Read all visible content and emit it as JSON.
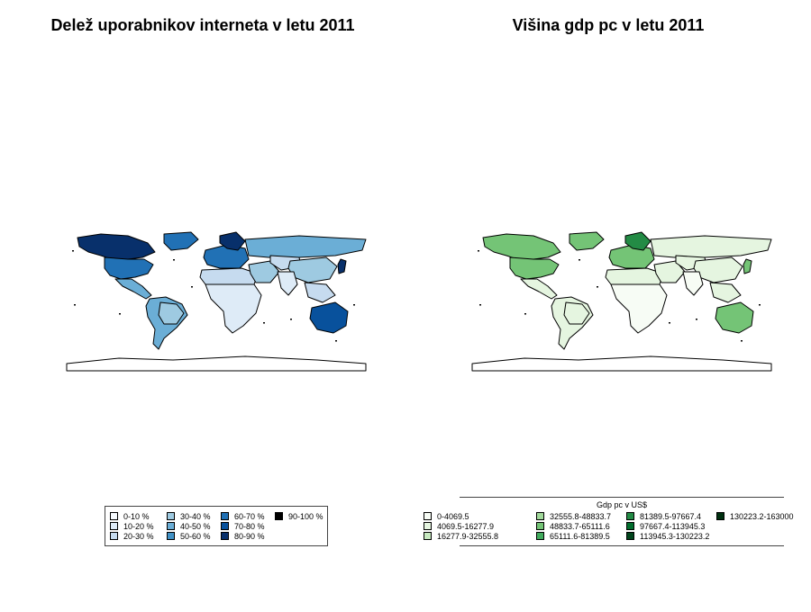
{
  "maps": [
    {
      "title": "Delež uporabnikov interneta v letu 2011",
      "legend": {
        "title": "",
        "items": [
          {
            "label": "0-10 %",
            "color": "#f7fbff"
          },
          {
            "label": "10-20 %",
            "color": "#deebf7"
          },
          {
            "label": "20-30 %",
            "color": "#c6dbef"
          },
          {
            "label": "30-40 %",
            "color": "#9ecae1"
          },
          {
            "label": "40-50 %",
            "color": "#6baed6"
          },
          {
            "label": "50-60 %",
            "color": "#4292c6"
          },
          {
            "label": "60-70 %",
            "color": "#2171b5"
          },
          {
            "label": "70-80 %",
            "color": "#08519c"
          },
          {
            "label": "80-90 %",
            "color": "#08306b"
          },
          {
            "label": "90-100 %",
            "color": "#000000"
          }
        ]
      },
      "regions": {
        "north_america": "#08306b",
        "greenland": "#2171b5",
        "usa": "#2171b5",
        "mexico_central": "#6baed6",
        "south_america": "#6baed6",
        "brazil": "#9ecae1",
        "africa": "#deebf7",
        "north_africa": "#c6dbef",
        "europe": "#2171b5",
        "scandinavia": "#08306b",
        "russia": "#6baed6",
        "middle_east": "#9ecae1",
        "central_asia": "#c6dbef",
        "china": "#9ecae1",
        "india": "#deebf7",
        "southeast_asia": "#c6dbef",
        "japan": "#08306b",
        "australia": "#08519c",
        "antarctica": "#ffffff"
      }
    },
    {
      "title": "Višina gdp pc v letu 2011",
      "legend": {
        "title": "Gdp pc v US$",
        "items": [
          {
            "label": "0-4069.5",
            "color": "#f7fcf5"
          },
          {
            "label": "4069.5-16277.9",
            "color": "#e5f5e0"
          },
          {
            "label": "16277.9-32555.8",
            "color": "#c7e9c0"
          },
          {
            "label": "32555.8-48833.7",
            "color": "#a1d99b"
          },
          {
            "label": "48833.7-65111.6",
            "color": "#74c476"
          },
          {
            "label": "65111.6-81389.5",
            "color": "#41ab5d"
          },
          {
            "label": "81389.5-97667.4",
            "color": "#238b45"
          },
          {
            "label": "97667.4-113945.3",
            "color": "#006d2c"
          },
          {
            "label": "113945.3-130223.2",
            "color": "#00441b"
          },
          {
            "label": "130223.2-163000",
            "color": "#003010"
          }
        ]
      },
      "regions": {
        "north_america": "#74c476",
        "greenland": "#74c476",
        "usa": "#74c476",
        "mexico_central": "#e5f5e0",
        "south_america": "#e5f5e0",
        "brazil": "#e5f5e0",
        "africa": "#f7fcf5",
        "north_africa": "#e5f5e0",
        "europe": "#74c476",
        "scandinavia": "#238b45",
        "russia": "#e5f5e0",
        "middle_east": "#e5f5e0",
        "central_asia": "#e5f5e0",
        "china": "#e5f5e0",
        "india": "#f7fcf5",
        "southeast_asia": "#e5f5e0",
        "japan": "#74c476",
        "australia": "#74c476",
        "antarctica": "#ffffff"
      }
    }
  ]
}
